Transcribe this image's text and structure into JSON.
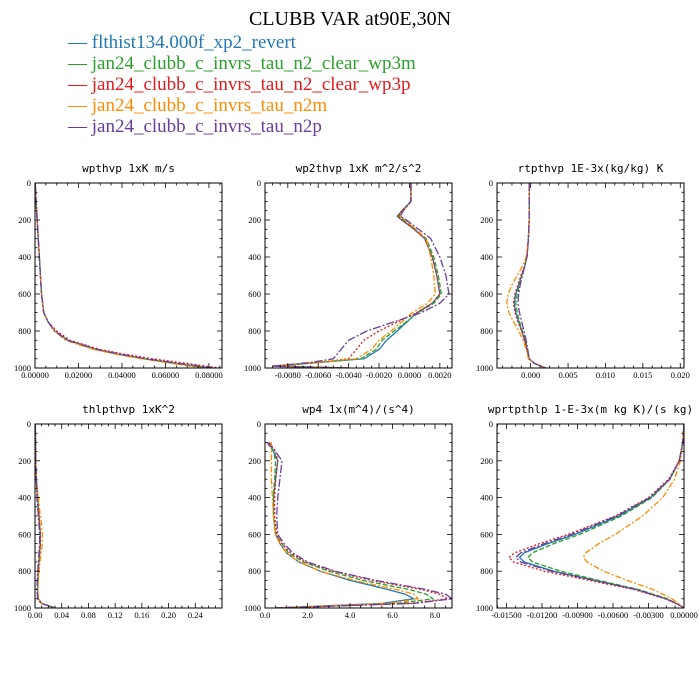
{
  "title": "CLUBB VAR at90E,30N",
  "legend": [
    {
      "label": "— flthist134.000f_xp2_revert",
      "color": "#1f78b4"
    },
    {
      "label": "— jan24_clubb_c_invrs_tau_n2_clear_wp3m",
      "color": "#2ca02c"
    },
    {
      "label": "— jan24_clubb_c_invrs_tau_n2_clear_wp3p",
      "color": "#e31a1c"
    },
    {
      "label": "— jan24_clubb_c_invrs_tau_n2m",
      "color": "#ff8c00"
    },
    {
      "label": "— jan24_clubb_c_invrs_tau_n2p",
      "color": "#6a3d9a"
    }
  ],
  "colors": [
    "#1f78b4",
    "#2ca02c",
    "#e31a1c",
    "#ff8c00",
    "#6a3d9a"
  ],
  "chart_data": [
    {
      "type": "line",
      "title": "wpthvp  1xK m/s",
      "xlim": [
        0,
        0.086
      ],
      "ylim": [
        1000,
        0
      ],
      "xticks": [
        0,
        0.02,
        0.04,
        0.06,
        0.08
      ],
      "xtick_labels": [
        "0.00000",
        "0.02000",
        "0.04000",
        "0.06000",
        "0.08000"
      ],
      "yticks": [
        0,
        200,
        400,
        600,
        800,
        1000
      ],
      "y": [
        0,
        100,
        200,
        300,
        400,
        500,
        600,
        700,
        750,
        800,
        850,
        900,
        925,
        950,
        975,
        1000
      ],
      "series": [
        {
          "values": [
            0.0001,
            0.0005,
            0.001,
            0.0015,
            0.002,
            0.0025,
            0.003,
            0.004,
            0.006,
            0.009,
            0.015,
            0.028,
            0.038,
            0.05,
            0.065,
            0.08
          ]
        },
        {
          "values": [
            0.0001,
            0.0005,
            0.001,
            0.0015,
            0.002,
            0.0025,
            0.003,
            0.004,
            0.006,
            0.009,
            0.015,
            0.028,
            0.038,
            0.05,
            0.064,
            0.079
          ]
        },
        {
          "values": [
            0.0001,
            0.0005,
            0.001,
            0.0015,
            0.002,
            0.0025,
            0.003,
            0.004,
            0.006,
            0.01,
            0.016,
            0.03,
            0.041,
            0.054,
            0.07,
            0.085
          ]
        },
        {
          "values": [
            0.0001,
            0.0005,
            0.001,
            0.0015,
            0.002,
            0.0025,
            0.003,
            0.004,
            0.006,
            0.009,
            0.014,
            0.027,
            0.037,
            0.049,
            0.063,
            0.077
          ]
        },
        {
          "values": [
            0.0001,
            0.0005,
            0.001,
            0.0015,
            0.002,
            0.0025,
            0.003,
            0.004,
            0.006,
            0.009,
            0.015,
            0.029,
            0.039,
            0.051,
            0.066,
            0.082
          ]
        }
      ]
    },
    {
      "type": "line",
      "title": "wp2thvp  1xK m^2/s^2",
      "xlim": [
        -0.0095,
        0.0028
      ],
      "ylim": [
        1000,
        0
      ],
      "xticks": [
        -0.008,
        -0.006,
        -0.004,
        -0.002,
        0,
        0.002
      ],
      "xtick_labels": [
        "-0.0080",
        "-0.0060",
        "-0.0040",
        "-0.0020",
        "0.0000",
        "0.0020"
      ],
      "yticks": [
        0,
        200,
        400,
        600,
        800,
        1000
      ],
      "y": [
        0,
        100,
        150,
        180,
        200,
        250,
        300,
        400,
        500,
        600,
        650,
        700,
        800,
        850,
        900,
        950,
        970,
        990,
        1000
      ],
      "series": [
        {
          "values": [
            0.0001,
            0.0001,
            -0.0005,
            -0.0008,
            -0.0005,
            0.0003,
            0.001,
            0.0015,
            0.0018,
            0.002,
            0.0015,
            0.0005,
            -0.0008,
            -0.0015,
            -0.002,
            -0.003,
            -0.006,
            -0.009,
            -0.004
          ]
        },
        {
          "values": [
            0.0001,
            0.0001,
            -0.0005,
            -0.0007,
            -0.0004,
            0.0004,
            0.0011,
            0.0016,
            0.0019,
            0.0021,
            0.0016,
            0.0006,
            -0.001,
            -0.0018,
            -0.0022,
            -0.0032,
            -0.006,
            -0.0085,
            -0.004
          ]
        },
        {
          "values": [
            0.0001,
            0.0001,
            -0.0005,
            -0.0008,
            -0.0005,
            0.0003,
            0.001,
            0.0015,
            0.0018,
            0.002,
            0.0015,
            0.0005,
            -0.002,
            -0.003,
            -0.0035,
            -0.004,
            -0.006,
            -0.009,
            -0.004
          ]
        },
        {
          "values": [
            0.0001,
            0.0001,
            -0.0004,
            -0.0006,
            -0.0003,
            0.0004,
            0.0011,
            0.0014,
            0.0016,
            0.0017,
            0.0012,
            0.0002,
            -0.0012,
            -0.002,
            -0.0025,
            -0.0035,
            -0.0062,
            -0.009,
            -0.004
          ]
        },
        {
          "values": [
            0.0001,
            0.0001,
            -0.0004,
            -0.0006,
            -0.0002,
            0.0006,
            0.0014,
            0.002,
            0.0024,
            0.0026,
            0.002,
            0.0008,
            -0.0028,
            -0.004,
            -0.0045,
            -0.005,
            -0.0065,
            -0.009,
            -0.004
          ]
        }
      ]
    },
    {
      "type": "line",
      "title": "rtpthvp  1E-3x(kg/kg) K",
      "xlim": [
        -0.0045,
        0.0205
      ],
      "ylim": [
        1000,
        0
      ],
      "xticks": [
        0,
        0.005,
        0.01,
        0.015,
        0.02
      ],
      "xtick_labels": [
        "0.000",
        "0.005",
        "0.010",
        "0.015",
        "0.020"
      ],
      "yticks": [
        0,
        200,
        400,
        600,
        800,
        1000
      ],
      "y": [
        0,
        100,
        200,
        300,
        400,
        450,
        500,
        550,
        600,
        650,
        700,
        750,
        800,
        850,
        900,
        950,
        975,
        1000
      ],
      "series": [
        {
          "values": [
            -0.0002,
            -0.0002,
            -0.0002,
            -0.0003,
            -0.0005,
            -0.0008,
            -0.0012,
            -0.0016,
            -0.002,
            -0.0022,
            -0.002,
            -0.0016,
            -0.0012,
            -0.0008,
            -0.0005,
            -0.0002,
            0.0005,
            0.002
          ]
        },
        {
          "values": [
            -0.0002,
            -0.0002,
            -0.0002,
            -0.0003,
            -0.0005,
            -0.0008,
            -0.0012,
            -0.0015,
            -0.0018,
            -0.002,
            -0.0018,
            -0.0015,
            -0.0011,
            -0.0007,
            -0.0004,
            -0.0002,
            0.0005,
            0.002
          ]
        },
        {
          "values": [
            -0.0002,
            -0.0002,
            -0.0002,
            -0.0003,
            -0.0005,
            -0.0008,
            -0.0013,
            -0.0017,
            -0.0021,
            -0.0023,
            -0.0021,
            -0.0017,
            -0.0012,
            -0.0008,
            -0.0005,
            -0.0002,
            0.0005,
            0.002
          ]
        },
        {
          "values": [
            -0.0002,
            -0.0002,
            -0.0002,
            -0.0003,
            -0.0006,
            -0.0011,
            -0.0018,
            -0.0025,
            -0.003,
            -0.0032,
            -0.0029,
            -0.0023,
            -0.0016,
            -0.001,
            -0.0006,
            -0.0003,
            0.0005,
            0.002
          ]
        },
        {
          "values": [
            -0.0002,
            -0.0002,
            -0.0002,
            -0.0003,
            -0.0005,
            -0.0008,
            -0.0011,
            -0.0014,
            -0.0016,
            -0.0017,
            -0.0015,
            -0.0012,
            -0.0009,
            -0.0006,
            -0.0004,
            -0.0002,
            0.0005,
            0.002
          ]
        }
      ]
    },
    {
      "type": "line",
      "title": "thlpthvp  1xK^2",
      "xlim": [
        0,
        0.28
      ],
      "ylim": [
        1000,
        0
      ],
      "xticks": [
        0,
        0.04,
        0.08,
        0.12,
        0.16,
        0.2,
        0.24
      ],
      "xtick_labels": [
        "0.00",
        "0.04",
        "0.08",
        "0.12",
        "0.16",
        "0.20",
        "0.24"
      ],
      "yticks": [
        0,
        200,
        400,
        600,
        800,
        1000
      ],
      "y": [
        0,
        200,
        300,
        400,
        500,
        550,
        600,
        650,
        700,
        800,
        900,
        950,
        975,
        1000
      ],
      "series": [
        {
          "values": [
            0.0005,
            0.001,
            0.002,
            0.004,
            0.006,
            0.007,
            0.008,
            0.008,
            0.007,
            0.005,
            0.004,
            0.005,
            0.01,
            0.03
          ]
        },
        {
          "values": [
            0.0005,
            0.001,
            0.002,
            0.004,
            0.006,
            0.007,
            0.008,
            0.008,
            0.007,
            0.005,
            0.004,
            0.005,
            0.01,
            0.03
          ]
        },
        {
          "values": [
            0.0005,
            0.001,
            0.002,
            0.004,
            0.006,
            0.007,
            0.008,
            0.008,
            0.007,
            0.005,
            0.004,
            0.005,
            0.01,
            0.03
          ]
        },
        {
          "values": [
            0.0005,
            0.001,
            0.002,
            0.005,
            0.008,
            0.01,
            0.011,
            0.011,
            0.009,
            0.006,
            0.004,
            0.005,
            0.01,
            0.03
          ]
        },
        {
          "values": [
            0.0005,
            0.001,
            0.002,
            0.003,
            0.005,
            0.006,
            0.007,
            0.007,
            0.006,
            0.004,
            0.003,
            0.004,
            0.009,
            0.03
          ]
        }
      ]
    },
    {
      "type": "line",
      "title": "wp4  1x(m^4)/(s^4)",
      "xlim": [
        0,
        8.8
      ],
      "ylim": [
        1000,
        0
      ],
      "xticks": [
        0,
        2,
        4,
        6,
        8
      ],
      "xtick_labels": [
        "0.0",
        "2.0",
        "4.0",
        "6.0",
        "8.0"
      ],
      "yticks": [
        0,
        200,
        400,
        600,
        800,
        1000
      ],
      "y": [
        100,
        150,
        200,
        300,
        400,
        500,
        600,
        650,
        700,
        750,
        800,
        850,
        900,
        925,
        950,
        975,
        990,
        1000
      ],
      "series": [
        {
          "values": [
            0.2,
            0.4,
            0.6,
            0.5,
            0.4,
            0.4,
            0.5,
            0.7,
            1.0,
            1.6,
            2.6,
            4.0,
            5.8,
            6.6,
            7.0,
            5.5,
            2.5,
            0.5
          ]
        },
        {
          "values": [
            0.1,
            0.4,
            0.5,
            0.45,
            0.4,
            0.4,
            0.5,
            0.8,
            1.1,
            1.8,
            3.0,
            4.6,
            6.8,
            7.6,
            7.9,
            6.2,
            2.8,
            0.5
          ]
        },
        {
          "values": [
            0.2,
            0.5,
            0.6,
            0.5,
            0.45,
            0.45,
            0.55,
            0.8,
            1.2,
            1.9,
            3.2,
            5.0,
            7.4,
            8.2,
            8.6,
            6.8,
            3.0,
            0.5
          ]
        },
        {
          "values": [
            0.3,
            0.3,
            0.3,
            0.3,
            0.35,
            0.4,
            0.5,
            0.7,
            1.0,
            1.6,
            2.6,
            4.2,
            6.2,
            7.0,
            7.2,
            5.8,
            2.6,
            0.5
          ]
        },
        {
          "values": [
            0.1,
            0.5,
            0.8,
            0.7,
            0.6,
            0.55,
            0.6,
            0.9,
            1.3,
            2.0,
            3.3,
            5.2,
            7.6,
            8.5,
            8.8,
            7.0,
            3.1,
            0.5
          ]
        }
      ]
    },
    {
      "type": "line",
      "title": "wprtpthlp  1-E-3x(m kg K)/(s kg)",
      "xlim": [
        -0.0158,
        0
      ],
      "ylim": [
        1000,
        0
      ],
      "xticks": [
        -0.015,
        -0.012,
        -0.009,
        -0.006,
        -0.003,
        0
      ],
      "xtick_labels": [
        "-0.01500",
        "-0.01200",
        "-0.00900",
        "-0.00600",
        "-0.00300",
        "0.00000"
      ],
      "yticks": [
        0,
        200,
        400,
        600,
        800,
        1000
      ],
      "y": [
        0,
        100,
        200,
        300,
        400,
        500,
        600,
        650,
        700,
        725,
        750,
        800,
        850,
        900,
        950,
        980,
        1000
      ],
      "series": [
        {
          "values": [
            0,
            -0.0001,
            -0.0004,
            -0.0012,
            -0.0028,
            -0.0055,
            -0.0092,
            -0.0115,
            -0.0135,
            -0.0139,
            -0.0135,
            -0.011,
            -0.0075,
            -0.004,
            -0.0015,
            -0.0005,
            0
          ]
        },
        {
          "values": [
            0,
            -0.0001,
            -0.0004,
            -0.0012,
            -0.0027,
            -0.0053,
            -0.0088,
            -0.011,
            -0.0128,
            -0.0132,
            -0.0128,
            -0.0104,
            -0.0072,
            -0.0038,
            -0.0014,
            -0.0005,
            0
          ]
        },
        {
          "values": [
            0,
            -0.0001,
            -0.0004,
            -0.0013,
            -0.003,
            -0.0058,
            -0.0098,
            -0.0122,
            -0.0143,
            -0.0148,
            -0.0144,
            -0.0118,
            -0.008,
            -0.0042,
            -0.0016,
            -0.0005,
            0
          ]
        },
        {
          "values": [
            0,
            -0.0001,
            -0.0003,
            -0.0008,
            -0.0018,
            -0.0035,
            -0.0058,
            -0.0072,
            -0.0083,
            -0.0085,
            -0.0082,
            -0.0068,
            -0.0048,
            -0.0026,
            -0.001,
            -0.0004,
            0
          ]
        },
        {
          "values": [
            0,
            -0.0001,
            -0.0004,
            -0.0012,
            -0.0029,
            -0.0057,
            -0.0095,
            -0.0118,
            -0.0138,
            -0.0142,
            -0.0138,
            -0.0112,
            -0.0076,
            -0.004,
            -0.0015,
            -0.0005,
            0
          ]
        }
      ]
    }
  ]
}
